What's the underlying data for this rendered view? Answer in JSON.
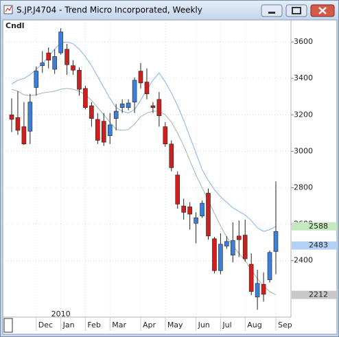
{
  "chart_data": {
    "type": "candlestick",
    "title": "S.JP.J4704 - Trend Micro Incorporated, Weekly",
    "study_label": "Cndl",
    "year_label": "2010",
    "categories": [
      null,
      null,
      null,
      null,
      null,
      null,
      null,
      null,
      null,
      null,
      null,
      null,
      null,
      null,
      null,
      null,
      null,
      null,
      null,
      null,
      null,
      null,
      null,
      null,
      null,
      null,
      null,
      null,
      null,
      null,
      null,
      null,
      null,
      null,
      null,
      null,
      null,
      null,
      null,
      null,
      null,
      null,
      null,
      null
    ],
    "open": [
      3200,
      3185,
      3135,
      3110,
      3350,
      3470,
      3540,
      3450,
      3540,
      3560,
      3470,
      3445,
      3345,
      3250,
      3175,
      3165,
      3085,
      3180,
      3240,
      3240,
      3270,
      3440,
      3380,
      3250,
      3285,
      3135,
      3040,
      2870,
      2700,
      2695,
      2605,
      2645,
      2770,
      2520,
      2345,
      2480,
      2430,
      2535,
      2540,
      2380,
      2200,
      2270,
      2295,
      2450
    ],
    "high": [
      3290,
      3330,
      3270,
      3315,
      3465,
      3550,
      3570,
      3560,
      3675,
      3590,
      3500,
      3460,
      3360,
      3270,
      3210,
      3210,
      3210,
      3260,
      3285,
      3285,
      3405,
      3485,
      3455,
      3270,
      3325,
      3160,
      3060,
      2890,
      2740,
      2720,
      2665,
      2730,
      2795,
      2530,
      2550,
      2535,
      2610,
      2620,
      2625,
      2440,
      2350,
      2335,
      2455,
      2835
    ],
    "low": [
      3105,
      3090,
      3035,
      3040,
      3305,
      3430,
      3455,
      3425,
      3530,
      3420,
      3420,
      3305,
      3230,
      3135,
      3040,
      3030,
      3040,
      3115,
      3210,
      3225,
      3210,
      3345,
      3285,
      3210,
      3135,
      3025,
      2890,
      2685,
      2625,
      2570,
      2495,
      2635,
      2515,
      2330,
      2325,
      2465,
      2390,
      2420,
      2395,
      2210,
      2130,
      2175,
      2280,
      2325
    ],
    "close": [
      3175,
      3115,
      3040,
      3270,
      3440,
      3485,
      3500,
      3520,
      3655,
      3475,
      3445,
      3340,
      3240,
      3180,
      3060,
      3050,
      3145,
      3220,
      3260,
      3265,
      3390,
      3375,
      3315,
      3240,
      3195,
      3040,
      2910,
      2710,
      2665,
      2655,
      2635,
      2715,
      2535,
      2345,
      2490,
      2505,
      2510,
      2515,
      2410,
      2230,
      2275,
      2215,
      2445,
      2560
    ],
    "up_color": "#3c7fd8",
    "down_color": "#d0201e",
    "lines": [
      {
        "color": "#7fb2e8",
        "values": [
          3370,
          3390,
          3400,
          3420,
          3450,
          3480,
          3520,
          3560,
          3595,
          3600,
          3590,
          3560,
          3520,
          3470,
          3410,
          3350,
          3290,
          3240,
          3220,
          3210,
          3230,
          3280,
          3340,
          3390,
          3430,
          3380,
          3320,
          3250,
          3170,
          3080,
          2990,
          2900,
          2840,
          2790,
          2750,
          2720,
          2690,
          2670,
          2650,
          2620,
          2580,
          2560,
          2570,
          2588
        ]
      },
      {
        "color": "#9cb8a8",
        "values": [
          3340,
          3330,
          3310,
          3305,
          3310,
          3320,
          3325,
          3330,
          3340,
          3345,
          3340,
          3330,
          3310,
          3280,
          3240,
          3200,
          3160,
          3120,
          3115,
          3120,
          3150,
          3190,
          3210,
          3220,
          3220,
          3200,
          3160,
          3100,
          3030,
          2950,
          2870,
          2800,
          2730,
          2660,
          2590,
          2530,
          2480,
          2440,
          2400,
          2350,
          2300,
          2260,
          2230,
          2212
        ]
      }
    ],
    "markers": [
      {
        "value": 2588,
        "color": "#c6e8c0"
      },
      {
        "value": 2483,
        "color": "#b4d0f4"
      },
      {
        "value": 2212,
        "color": "#c8c8c8"
      }
    ],
    "ylim": [
      2090,
      3721
    ],
    "yticks": [
      2400,
      2600,
      2800,
      3000,
      3200,
      3400,
      3600
    ],
    "xticks": [
      {
        "value": 4,
        "label": "Dec"
      },
      {
        "value": 8,
        "label": "Jan"
      },
      {
        "value": 12,
        "label": "Feb"
      },
      {
        "value": 16,
        "label": "Mar"
      },
      {
        "value": 21,
        "label": "Apr"
      },
      {
        "value": 25,
        "label": "May"
      },
      {
        "value": 30,
        "label": "Jun"
      },
      {
        "value": 34,
        "label": "Jul"
      },
      {
        "value": 38,
        "label": "Aug"
      },
      {
        "value": 43,
        "label": "Sep"
      }
    ],
    "grid": true
  }
}
